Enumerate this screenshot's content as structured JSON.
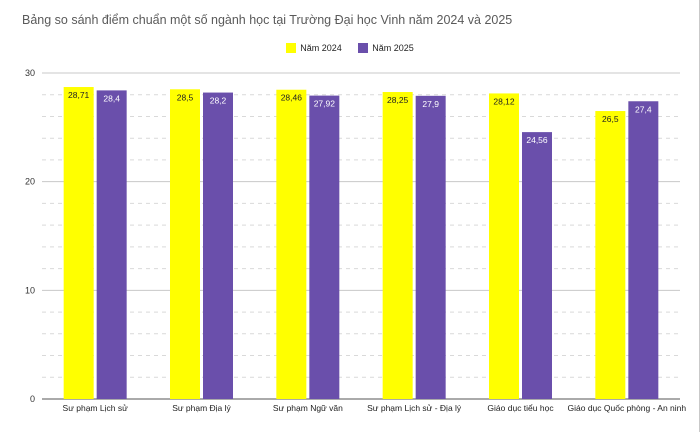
{
  "chart_data": {
    "type": "bar",
    "title": "Bảng so sánh điểm chuẩn một số ngành học tại Trường Đại học Vinh năm 2024 và 2025",
    "categories": [
      "Sư phạm Lịch sử",
      "Sư phạm Địa lý",
      "Sư phạm Ngữ văn",
      "Sư phạm Lịch sử - Địa lý",
      "Giáo dục tiểu học",
      "Giáo dục Quốc phòng - An ninh"
    ],
    "series": [
      {
        "name": "Năm 2024",
        "color": "#ffff00",
        "values": [
          28.71,
          28.5,
          28.46,
          28.25,
          28.12,
          26.5
        ],
        "labels": [
          "28,71",
          "28,5",
          "28,46",
          "28,25",
          "28,12",
          "26,5"
        ]
      },
      {
        "name": "Năm 2025",
        "color": "#6a4fab",
        "values": [
          28.4,
          28.2,
          27.92,
          27.9,
          24.56,
          27.4
        ],
        "labels": [
          "28,4",
          "28,2",
          "27,92",
          "27,9",
          "24,56",
          "27,4"
        ]
      }
    ],
    "ylim": [
      0,
      30
    ],
    "yticks": [
      0,
      10,
      20,
      30
    ],
    "xlabel": "",
    "ylabel": "",
    "grid": true,
    "legend_position": "top"
  }
}
